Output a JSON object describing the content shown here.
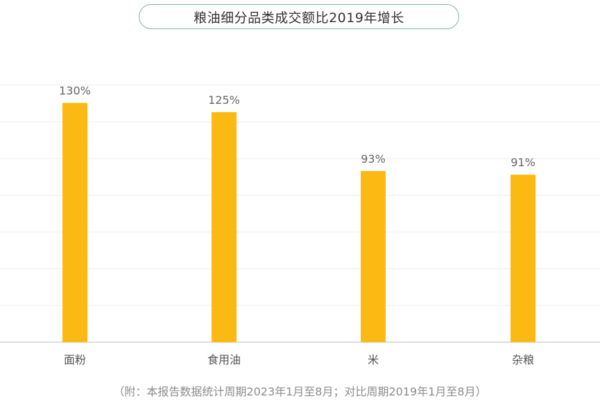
{
  "title": "粮油细分品类成交额比2019年增长",
  "footnote": "（附：本报告数据统计周期2023年1月至8月；对比周期2019年1月至8月）",
  "colors": {
    "bar": "#FDB913",
    "grid": "#ececec",
    "axis": "#d0d0d0",
    "title_border": "#7fb79d",
    "label": "#666666"
  },
  "chart_data": {
    "type": "bar",
    "title": "粮油细分品类成交额比2019年增长",
    "categories": [
      "面粉",
      "食用油",
      "米",
      "杂粮"
    ],
    "values": [
      130,
      125,
      93,
      91
    ],
    "value_labels": [
      "130%",
      "125%",
      "93%",
      "91%"
    ],
    "unit": "%",
    "ylim": [
      0,
      140
    ],
    "grid": true,
    "legend": "none"
  }
}
